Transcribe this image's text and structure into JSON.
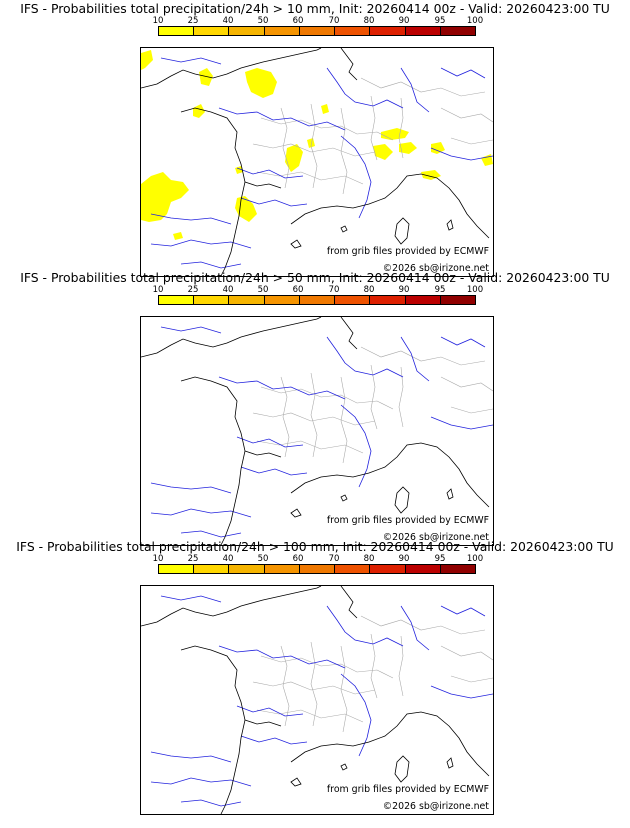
{
  "colors": {
    "scale": [
      "#ffff00",
      "#ffd700",
      "#f5b400",
      "#f59400",
      "#ef7800",
      "#ee5200",
      "#dd2000",
      "#bb0000",
      "#900000",
      "#5a0000"
    ],
    "rain_fill": "#ffff00",
    "coast": "#000000",
    "river": "#2222dd",
    "border": "#aaaaaa"
  },
  "colorbar_ticks": [
    "10",
    "25",
    "40",
    "50",
    "60",
    "70",
    "80",
    "90",
    "95",
    "100"
  ],
  "panels": [
    {
      "title": "IFS - Probabilities total precipitation/24h > 10 mm, Init: 20260414 00z - Valid: 20260423:00 TU",
      "credit_source": "from grib files provided by ECMWF",
      "credit_copyright": "©2026 sb@irizone.net",
      "has_precip_areas": true
    },
    {
      "title": "IFS - Probabilities total precipitation/24h > 50 mm, Init: 20260414 00z - Valid: 20260423:00 TU",
      "credit_source": "from grib files provided by ECMWF",
      "credit_copyright": "©2026 sb@irizone.net",
      "has_precip_areas": false
    },
    {
      "title": "IFS - Probabilities total precipitation/24h > 100 mm, Init: 20260414 00z - Valid: 20260423:00 TU",
      "credit_source": "from grib files provided by ECMWF",
      "credit_copyright": "©2026 sb@irizone.net",
      "has_precip_areas": false
    }
  ]
}
